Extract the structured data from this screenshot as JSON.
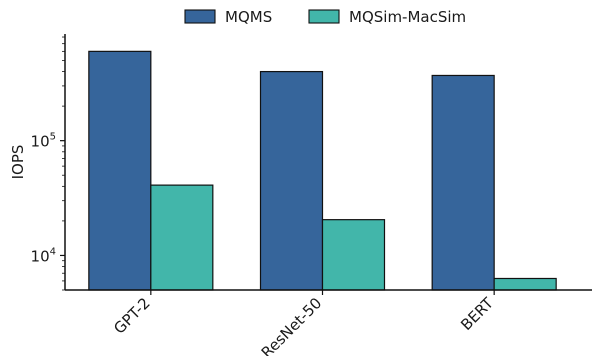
{
  "chart_data": {
    "type": "bar",
    "categories": [
      "GPT-2",
      "ResNet-50",
      "BERT"
    ],
    "series": [
      {
        "name": "MQMS",
        "values": [
          600000,
          400000,
          370000
        ],
        "color": "#36659b"
      },
      {
        "name": "MQSim-MacSim",
        "values": [
          41000,
          20500,
          6300
        ],
        "color": "#42b6aa"
      }
    ],
    "ylabel": "IOPS",
    "xlabel": "",
    "yscale": "log",
    "ylim": [
      5000,
      850000
    ],
    "yticks": [
      {
        "base": "10",
        "exp": "4",
        "value": 10000
      },
      {
        "base": "10",
        "exp": "5",
        "value": 100000
      }
    ],
    "grid": false,
    "legend_position": "top-center",
    "tick_label_rotation": -45
  }
}
